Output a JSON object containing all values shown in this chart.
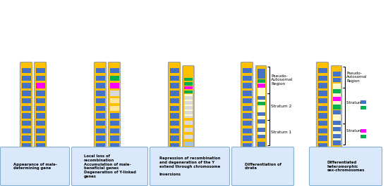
{
  "background": "#ffffff",
  "chr_orange": "#FFC000",
  "chr_blue": "#4472C4",
  "chr_lightblue": "#9DC3E6",
  "chr_gray": "#C0C0C0",
  "chr_lightgray": "#D9D9D9",
  "chr_peach": "#FFE699",
  "chr_green": "#00B050",
  "chr_magenta": "#FF00FF",
  "chr_lightpeach": "#FFFACD",
  "box_fill": "#DAE8FC",
  "box_edge": "#82B0D2",
  "panel_captions": [
    "Appearance of male-\ndetermining gene",
    "Local loss of\nrecombination\nAccumulation of male-\nbeneficial genes\nDegeneration of Y-linked\ngenes",
    "Repression of recombination\nand degeneration of the Y\nextend through chromosome\n\nInversions",
    "Differentiation of\nstrata",
    "Differentiated\nheteromorphic\nsex-chromosomes"
  ]
}
